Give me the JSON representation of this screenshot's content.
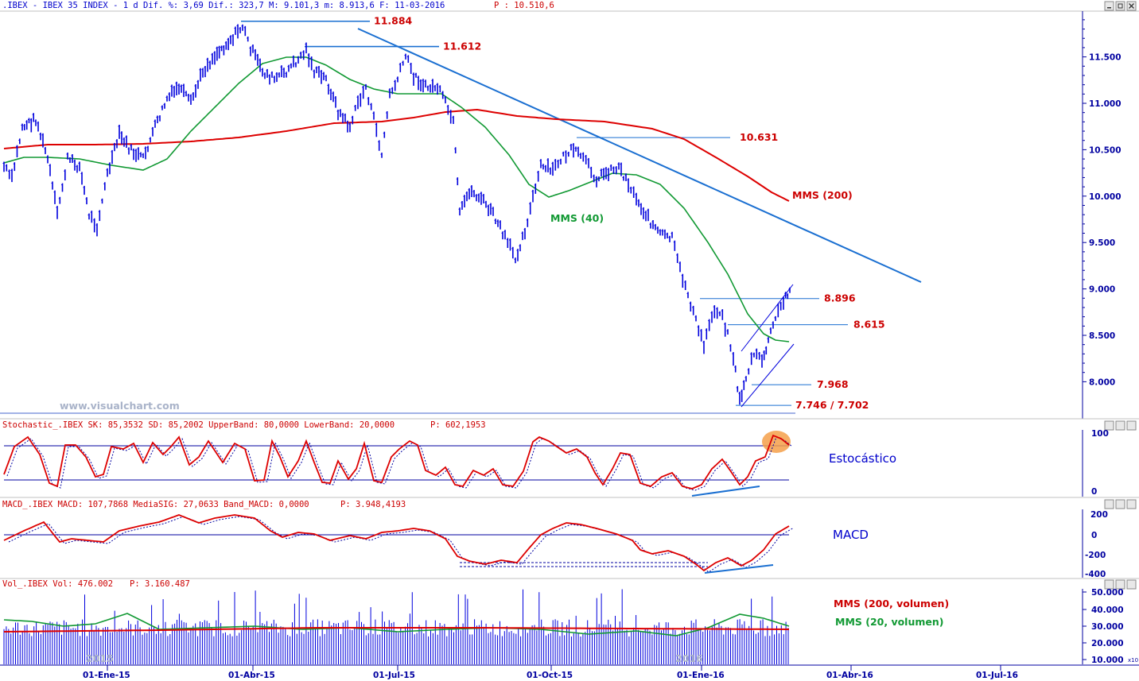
{
  "colors": {
    "price": "#0000dd",
    "mms200": "#dd0000",
    "mms40": "#119933",
    "trend": "#1a6fd1",
    "annot": "#cc0000",
    "axis": "#0000a0",
    "grid": "#9aa4d8",
    "watermark": "#a9b3c9"
  },
  "price_panel": {
    "header": ".IBEX - IBEX 35 INDEX -  1 d Dif. %: 3,69 Dif.: 323,7 M: 9.101,3 m: 8.913,6 F: 11-03-2016",
    "header_p": "P : 10.510,6",
    "watermark": "www.visualchart.com",
    "label_mms40": "MMS (40)",
    "label_mms200": "MMS (200)",
    "levels": [
      "11.884",
      "11.612",
      "10.631",
      "8.896",
      "8.615",
      "7.968",
      "7.746 / 7.702"
    ],
    "yticks": [
      "11.500",
      "11.000",
      "10.500",
      "10.000",
      "9.500",
      "9.000",
      "8.500",
      "8.000"
    ]
  },
  "stoch_panel": {
    "header": "Stochastic_.IBEX SK: 85,3532 SD: 85,2002 UpperBand: 80,0000 LowerBand: 20,0000",
    "header_p": "P: 602,1953",
    "label": "Estocástico",
    "yticks": [
      "100",
      "0"
    ]
  },
  "macd_panel": {
    "header": "MACD_.IBEX MACD: 107,7868 MediaSIG: 27,0633 Band_MACD: 0,0000",
    "header_p": "P: 3.948,4193",
    "label": "MACD",
    "yticks": [
      "200",
      "0",
      "-200",
      "-400"
    ]
  },
  "vol_panel": {
    "header": "Vol_.IBEX Vol: 476.002",
    "header_p": "P: 3.160.487",
    "label_mms200": "MMS (200, volumen)",
    "label_mms20": "MMS (20, volumen)",
    "yticks": [
      "50.000",
      "40.000",
      "30.000",
      "20.000",
      "10.000"
    ],
    "year_labels": [
      "2015",
      "2016"
    ],
    "scale_note": "x10"
  },
  "xaxis": {
    "labels": [
      "01-Ene-15",
      "01-Abr-15",
      "01-Jul-15",
      "01-Oct-15",
      "01-Ene-16",
      "01-Abr-16",
      "01-Jul-16"
    ]
  },
  "chart_data": [
    {
      "type": "line",
      "title": ".IBEX - IBEX 35 INDEX - 1 d",
      "x": [
        "2014-12-01",
        "2015-01-01",
        "2015-02-01",
        "2015-03-01",
        "2015-04-01",
        "2015-04-13",
        "2015-05-01",
        "2015-06-01",
        "2015-06-29",
        "2015-07-20",
        "2015-08-01",
        "2015-08-24",
        "2015-09-01",
        "2015-09-29",
        "2015-10-15",
        "2015-11-01",
        "2015-11-27",
        "2015-12-14",
        "2016-01-01",
        "2016-01-15",
        "2016-02-01",
        "2016-02-11",
        "2016-02-25",
        "2016-03-11"
      ],
      "series": [
        {
          "name": "price",
          "values": [
            10300,
            10100,
            9900,
            10600,
            11400,
            11884,
            11300,
            11100,
            10600,
            11612,
            11300,
            10400,
            10000,
            9400,
            10300,
            10400,
            10631,
            10000,
            9600,
            8900,
            8500,
            7746,
            8400,
            8950
          ]
        },
        {
          "name": "MMS (40)",
          "values": [
            10300,
            10200,
            10150,
            10250,
            10700,
            11000,
            11400,
            11350,
            11100,
            11150,
            11100,
            10800,
            10400,
            10050,
            10000,
            10100,
            10350,
            10450,
            10200,
            9800,
            9100,
            8650,
            8450,
            8440
          ]
        },
        {
          "name": "MMS (200)",
          "values": [
            10500,
            10520,
            10530,
            10530,
            10560,
            10600,
            10700,
            10800,
            10850,
            10900,
            10920,
            10900,
            10860,
            10800,
            10780,
            10750,
            10700,
            10640,
            10500,
            10300,
            10150,
            10050,
            9990,
            9970
          ]
        }
      ],
      "levels": [
        11884,
        11612,
        10631,
        8896,
        8615,
        7968,
        7746,
        7702
      ],
      "ylim": [
        7650,
        11950
      ]
    },
    {
      "type": "line",
      "title": "Stochastic_.IBEX",
      "bands": [
        80,
        20
      ],
      "ylim": [
        -5,
        105
      ],
      "series": [
        {
          "name": "SK",
          "last": 85.3532
        },
        {
          "name": "SD",
          "last": 85.2002
        }
      ]
    },
    {
      "type": "line",
      "title": "MACD_.IBEX",
      "ylim": [
        -430,
        230
      ],
      "series": [
        {
          "name": "MACD",
          "last": 107.7868
        },
        {
          "name": "MediaSIG",
          "last": 27.0633
        }
      ]
    },
    {
      "type": "bar",
      "title": "Vol_.IBEX",
      "ylim": [
        8000,
        52000
      ],
      "last_value": 476002,
      "series": [
        {
          "name": "MMS (200, volumen)"
        },
        {
          "name": "MMS (20, volumen)"
        }
      ]
    }
  ]
}
